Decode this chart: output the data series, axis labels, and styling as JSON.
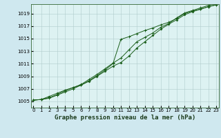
{
  "title": "Graphe pression niveau de la mer (hPa)",
  "background_color": "#cfe8ef",
  "plot_bg_color": "#ddf2f2",
  "grid_color": "#b0cccc",
  "line_color": "#1a5e1a",
  "x_hours": [
    0,
    1,
    2,
    3,
    4,
    5,
    6,
    7,
    8,
    9,
    10,
    11,
    12,
    13,
    14,
    15,
    16,
    17,
    18,
    19,
    20,
    21,
    22,
    23
  ],
  "line1": [
    1005.2,
    1005.3,
    1005.5,
    1006.0,
    1006.5,
    1007.0,
    1007.6,
    1008.3,
    1009.1,
    1010.0,
    1011.0,
    1014.9,
    1015.3,
    1015.8,
    1016.3,
    1016.7,
    1017.2,
    1017.6,
    1018.2,
    1019.0,
    1019.4,
    1019.7,
    1020.1,
    1020.4
  ],
  "line2": [
    1005.2,
    1005.3,
    1005.8,
    1006.3,
    1006.8,
    1007.2,
    1007.6,
    1008.2,
    1009.0,
    1009.8,
    1010.6,
    1011.2,
    1012.2,
    1013.5,
    1014.5,
    1015.5,
    1016.5,
    1017.3,
    1018.0,
    1018.8,
    1019.3,
    1019.7,
    1020.1,
    1020.4
  ],
  "line3": [
    1005.2,
    1005.3,
    1005.6,
    1006.1,
    1006.7,
    1007.2,
    1007.7,
    1008.5,
    1009.3,
    1010.2,
    1011.1,
    1011.9,
    1013.2,
    1014.5,
    1015.2,
    1015.9,
    1016.8,
    1017.4,
    1018.3,
    1019.1,
    1019.5,
    1019.9,
    1020.3,
    1020.6
  ],
  "ylim": [
    1004.0,
    1020.5
  ],
  "yticks": [
    1005,
    1007,
    1009,
    1011,
    1013,
    1015,
    1017,
    1019
  ],
  "xlim": [
    -0.3,
    23.3
  ],
  "title_fontsize": 6.5,
  "tick_fontsize": 5.0,
  "fig_width": 3.2,
  "fig_height": 2.0
}
